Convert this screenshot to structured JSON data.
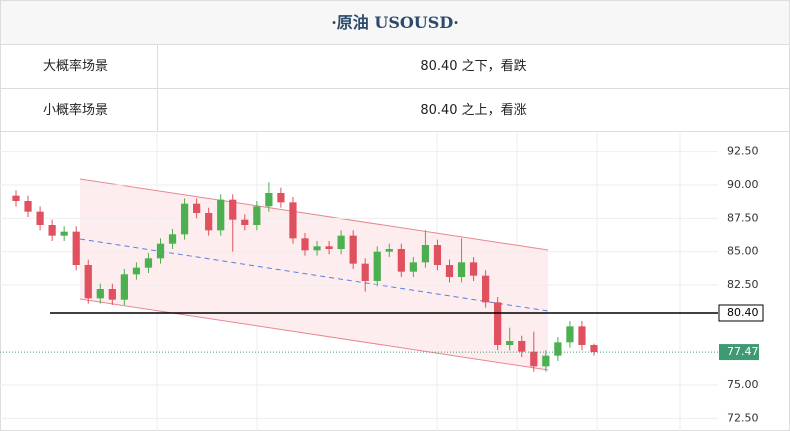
{
  "header": {
    "title": "·原油 USOUSD·"
  },
  "table": {
    "rows": [
      [
        "大概率场景",
        "80.40 之下，看跌"
      ],
      [
        "小概率场景",
        "80.40 之上，看涨"
      ]
    ]
  },
  "chart_data": {
    "type": "candlestick",
    "up_color": "#4caf50",
    "down_color": "#e0505e",
    "ylim": [
      71.55,
      94.05
    ],
    "yticks": [
      {
        "value": 92.5,
        "label": "92.50"
      },
      {
        "value": 90,
        "label": "90.00"
      },
      {
        "value": 87.5,
        "label": "87.50"
      },
      {
        "value": 85,
        "label": "85.00"
      },
      {
        "value": 82.5,
        "label": "82.50"
      },
      {
        "value": 75,
        "label": "75.00"
      },
      {
        "value": 72.5,
        "label": "72.50"
      }
    ],
    "grid": true,
    "levels": [
      {
        "value": 80.4,
        "label": "80.40",
        "color": "#000000"
      }
    ],
    "last_price": 77.47,
    "last_color": "#3d9a72",
    "open": [
      89.2,
      88.8,
      88.0,
      87.0,
      86.2,
      86.5,
      84.0,
      81.5,
      82.2,
      81.4,
      83.3,
      83.8,
      84.5,
      85.6,
      86.3,
      88.6,
      87.9,
      86.6,
      88.9,
      87.4,
      87.0,
      88.4,
      89.4,
      88.7,
      86.0,
      85.1,
      85.4,
      85.2,
      86.2,
      84.1,
      82.8,
      85.0,
      85.2,
      83.5,
      84.2,
      85.5,
      84.0,
      83.1,
      84.2,
      83.2,
      81.2,
      78.0,
      78.3,
      77.5,
      76.4,
      77.2,
      78.2,
      79.4,
      78.0
    ],
    "high": [
      89.6,
      89.2,
      88.4,
      87.4,
      86.9,
      86.9,
      84.4,
      82.6,
      82.6,
      83.7,
      84.2,
      84.9,
      86.0,
      86.7,
      89.0,
      89.0,
      88.3,
      89.3,
      89.3,
      87.8,
      88.8,
      90.2,
      89.8,
      89.1,
      86.4,
      85.8,
      85.8,
      86.6,
      86.6,
      84.5,
      85.4,
      85.6,
      85.6,
      84.6,
      86.6,
      85.9,
      84.4,
      86.0,
      84.6,
      83.6,
      81.6,
      79.3,
      78.7,
      79.0,
      77.6,
      78.6,
      79.8,
      79.8,
      78.1
    ],
    "low": [
      88.4,
      87.6,
      86.6,
      85.8,
      85.8,
      83.6,
      81.1,
      81.1,
      81.0,
      81.0,
      82.9,
      83.4,
      84.1,
      85.2,
      85.9,
      87.5,
      86.2,
      86.2,
      85.0,
      86.6,
      86.6,
      88.0,
      88.3,
      85.6,
      84.7,
      84.7,
      84.8,
      84.8,
      83.7,
      82.0,
      82.4,
      84.6,
      83.1,
      83.1,
      83.8,
      83.6,
      82.7,
      82.7,
      82.8,
      80.8,
      77.6,
      77.6,
      77.1,
      76.0,
      76.0,
      76.8,
      77.8,
      77.6,
      77.2
    ],
    "close": [
      88.8,
      88.0,
      87.0,
      86.2,
      86.5,
      84.0,
      81.5,
      82.2,
      81.4,
      83.3,
      83.8,
      84.5,
      85.6,
      86.3,
      88.6,
      87.9,
      86.6,
      88.9,
      87.4,
      87.0,
      88.4,
      89.4,
      88.7,
      86.0,
      85.1,
      85.4,
      85.2,
      86.2,
      84.1,
      82.8,
      85.0,
      85.2,
      83.5,
      84.2,
      85.5,
      84.0,
      83.1,
      84.2,
      83.2,
      81.2,
      78.0,
      78.3,
      77.5,
      76.4,
      77.2,
      78.2,
      79.4,
      78.0,
      77.47
    ]
  }
}
